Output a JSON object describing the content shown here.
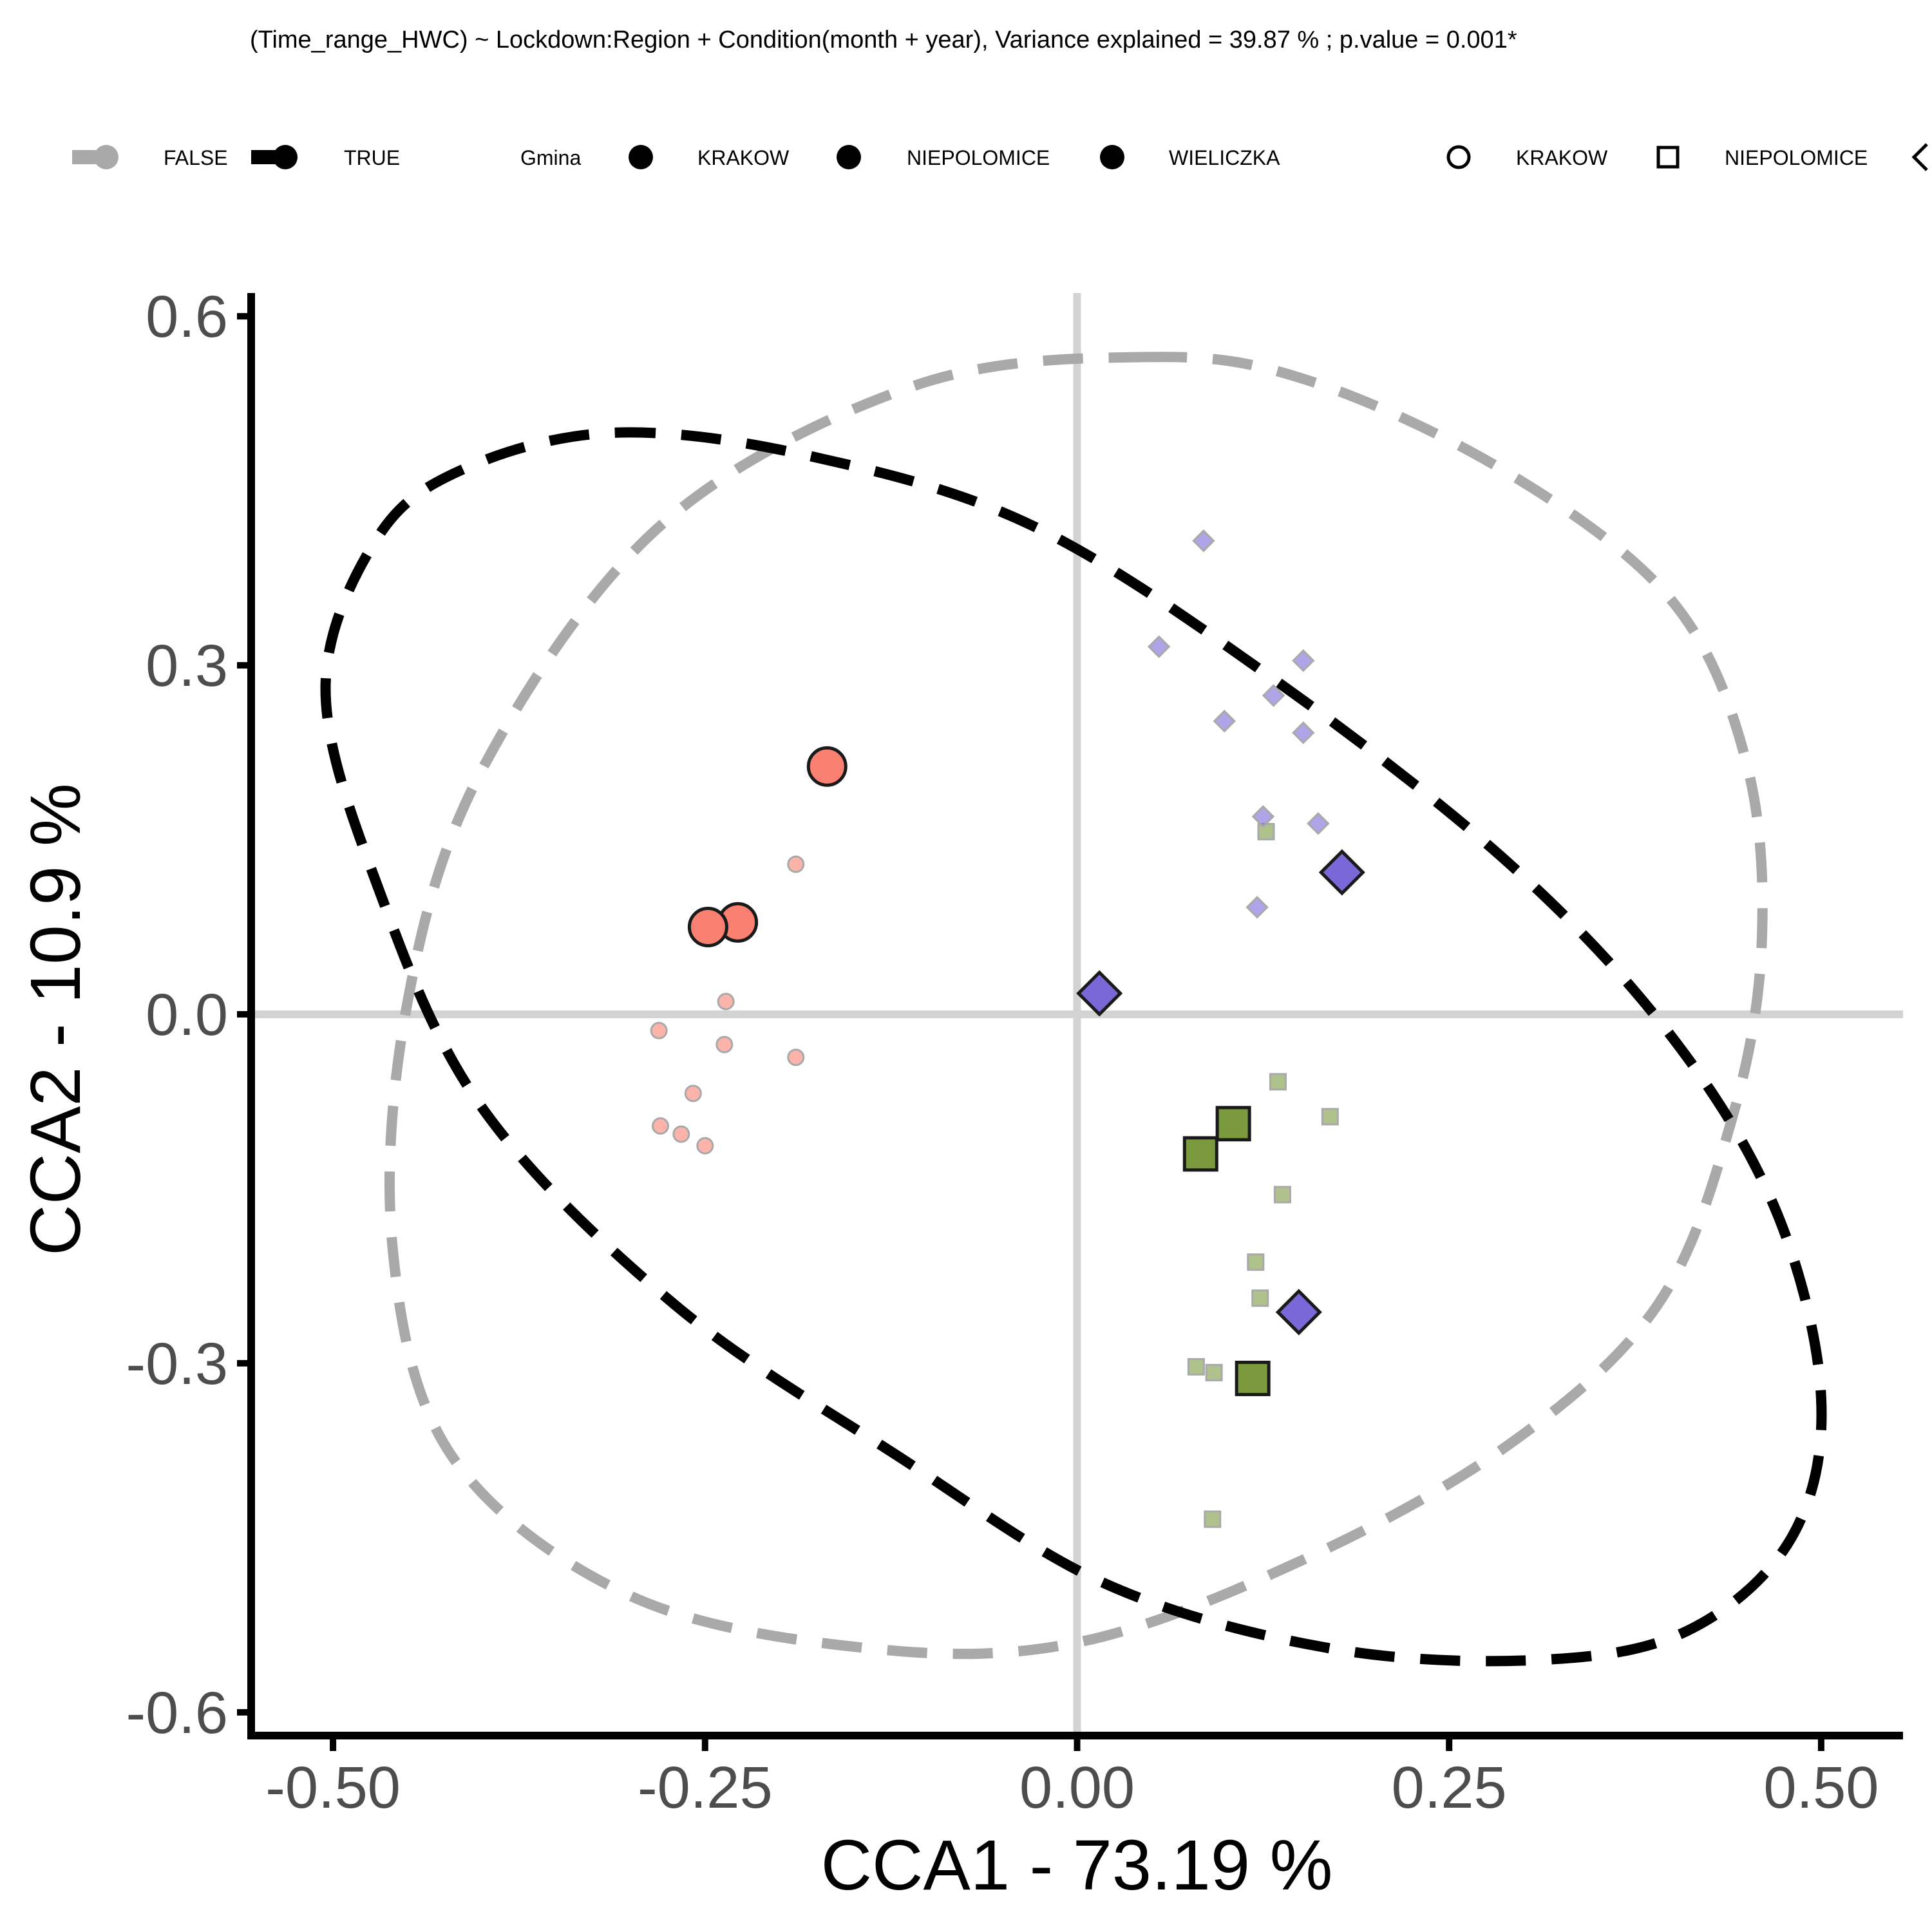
{
  "chart_data": {
    "type": "scatter",
    "subtitle": "(Time_range_HWC) ~ Lockdown:Region + Condition(month + year), Variance explained = 39.87 % ; p.value = 0.001*",
    "xlabel": "CCA1 - 73.19 %",
    "ylabel": "CCA2 - 10.9 %",
    "xlim": [
      -0.555,
      0.555
    ],
    "ylim": [
      -0.62,
      0.62
    ],
    "x_ticks": [
      {
        "value": -0.5,
        "label": "-0.50"
      },
      {
        "value": -0.25,
        "label": "-0.25"
      },
      {
        "value": 0.0,
        "label": "0.00"
      },
      {
        "value": 0.25,
        "label": "0.25"
      },
      {
        "value": 0.5,
        "label": "0.50"
      }
    ],
    "y_ticks": [
      {
        "value": 0.6,
        "label": "0.6"
      },
      {
        "value": 0.3,
        "label": "0.3"
      },
      {
        "value": 0.0,
        "label": "0.0"
      },
      {
        "value": -0.3,
        "label": "-0.3"
      },
      {
        "value": -0.6,
        "label": "-0.6"
      }
    ],
    "grid": false,
    "reference_lines": {
      "x": 0,
      "y": 0,
      "color": "#d3d3d3"
    },
    "legend": {
      "position": "top",
      "lockdown_entries": [
        {
          "label": "FALSE",
          "color": "#a9a9a9"
        },
        {
          "label": "TRUE",
          "color": "#000000"
        }
      ],
      "color_title": "Gmina",
      "color_entries": [
        "KRAKOW",
        "NIEPOLOMICE",
        "WIELICZKA"
      ],
      "shape_entries": [
        {
          "label": "KRAKOW",
          "shape": "circle"
        },
        {
          "label": "NIEPOLOMICE",
          "shape": "square"
        },
        {
          "label": "",
          "shape": "diamond"
        }
      ]
    },
    "series": [
      {
        "region": "KRAKOW",
        "shape": "circle",
        "color": "#fa8072",
        "samples": [
          {
            "x": -0.189,
            "y": 0.129
          },
          {
            "x": -0.236,
            "y": 0.011
          },
          {
            "x": -0.281,
            "y": -0.014
          },
          {
            "x": -0.237,
            "y": -0.026
          },
          {
            "x": -0.189,
            "y": -0.037
          },
          {
            "x": -0.258,
            "y": -0.068
          },
          {
            "x": -0.28,
            "y": -0.096
          },
          {
            "x": -0.266,
            "y": -0.103
          },
          {
            "x": -0.25,
            "y": -0.113
          }
        ],
        "centroids": [
          {
            "x": -0.168,
            "y": 0.213
          },
          {
            "x": -0.228,
            "y": 0.079
          },
          {
            "x": -0.248,
            "y": 0.075
          }
        ]
      },
      {
        "region": "NIEPOLOMICE",
        "shape": "square",
        "color": "#7a9a3d",
        "samples": [
          {
            "x": 0.127,
            "y": 0.157
          },
          {
            "x": 0.135,
            "y": -0.058
          },
          {
            "x": 0.17,
            "y": -0.088
          },
          {
            "x": 0.138,
            "y": -0.155
          },
          {
            "x": 0.12,
            "y": -0.213
          },
          {
            "x": 0.123,
            "y": -0.244
          },
          {
            "x": 0.08,
            "y": -0.303
          },
          {
            "x": 0.092,
            "y": -0.308
          },
          {
            "x": 0.091,
            "y": -0.434
          }
        ],
        "centroids": [
          {
            "x": 0.105,
            "y": -0.094
          },
          {
            "x": 0.083,
            "y": -0.12
          },
          {
            "x": 0.118,
            "y": -0.313
          }
        ]
      },
      {
        "region": "WIELICZKA",
        "shape": "diamond",
        "color": "#7b68d8",
        "samples": [
          {
            "x": 0.085,
            "y": 0.407
          },
          {
            "x": 0.055,
            "y": 0.316
          },
          {
            "x": 0.152,
            "y": 0.304
          },
          {
            "x": 0.132,
            "y": 0.274
          },
          {
            "x": 0.099,
            "y": 0.252
          },
          {
            "x": 0.152,
            "y": 0.242
          },
          {
            "x": 0.125,
            "y": 0.17
          },
          {
            "x": 0.162,
            "y": 0.164
          },
          {
            "x": 0.121,
            "y": 0.092
          }
        ],
        "centroids": [
          {
            "x": 0.178,
            "y": 0.122
          },
          {
            "x": 0.015,
            "y": 0.018
          },
          {
            "x": 0.149,
            "y": -0.256
          }
        ]
      }
    ],
    "ellipses": [
      {
        "lockdown": "FALSE",
        "color": "#a9a9a9",
        "path": [
          {
            "x": 0.047,
            "y": 0.565
          },
          {
            "x": 0.155,
            "y": 0.545
          },
          {
            "x": 0.29,
            "y": 0.465
          },
          {
            "x": 0.4,
            "y": 0.355
          },
          {
            "x": 0.45,
            "y": 0.215
          },
          {
            "x": 0.46,
            "y": 0.06
          },
          {
            "x": 0.44,
            "y": -0.09
          },
          {
            "x": 0.39,
            "y": -0.25
          },
          {
            "x": 0.29,
            "y": -0.37
          },
          {
            "x": 0.15,
            "y": -0.47
          },
          {
            "x": 0.0,
            "y": -0.54
          },
          {
            "x": -0.14,
            "y": -0.545
          },
          {
            "x": -0.3,
            "y": -0.5
          },
          {
            "x": -0.42,
            "y": -0.38
          },
          {
            "x": -0.46,
            "y": -0.2
          },
          {
            "x": -0.45,
            "y": 0.01
          },
          {
            "x": -0.4,
            "y": 0.21
          },
          {
            "x": -0.28,
            "y": 0.42
          },
          {
            "x": -0.11,
            "y": 0.54
          }
        ]
      },
      {
        "lockdown": "TRUE",
        "color": "#000000",
        "path": [
          {
            "x": -0.31,
            "y": 0.5
          },
          {
            "x": -0.18,
            "y": 0.48
          },
          {
            "x": -0.03,
            "y": 0.42
          },
          {
            "x": 0.13,
            "y": 0.29
          },
          {
            "x": 0.29,
            "y": 0.13
          },
          {
            "x": 0.4,
            "y": -0.02
          },
          {
            "x": 0.47,
            "y": -0.17
          },
          {
            "x": 0.5,
            "y": -0.33
          },
          {
            "x": 0.48,
            "y": -0.45
          },
          {
            "x": 0.41,
            "y": -0.53
          },
          {
            "x": 0.31,
            "y": -0.555
          },
          {
            "x": 0.17,
            "y": -0.545
          },
          {
            "x": 0.02,
            "y": -0.49
          },
          {
            "x": -0.12,
            "y": -0.38
          },
          {
            "x": -0.27,
            "y": -0.25
          },
          {
            "x": -0.4,
            "y": -0.08
          },
          {
            "x": -0.47,
            "y": 0.11
          },
          {
            "x": -0.505,
            "y": 0.28
          },
          {
            "x": -0.47,
            "y": 0.41
          },
          {
            "x": -0.41,
            "y": 0.47
          }
        ]
      }
    ]
  }
}
